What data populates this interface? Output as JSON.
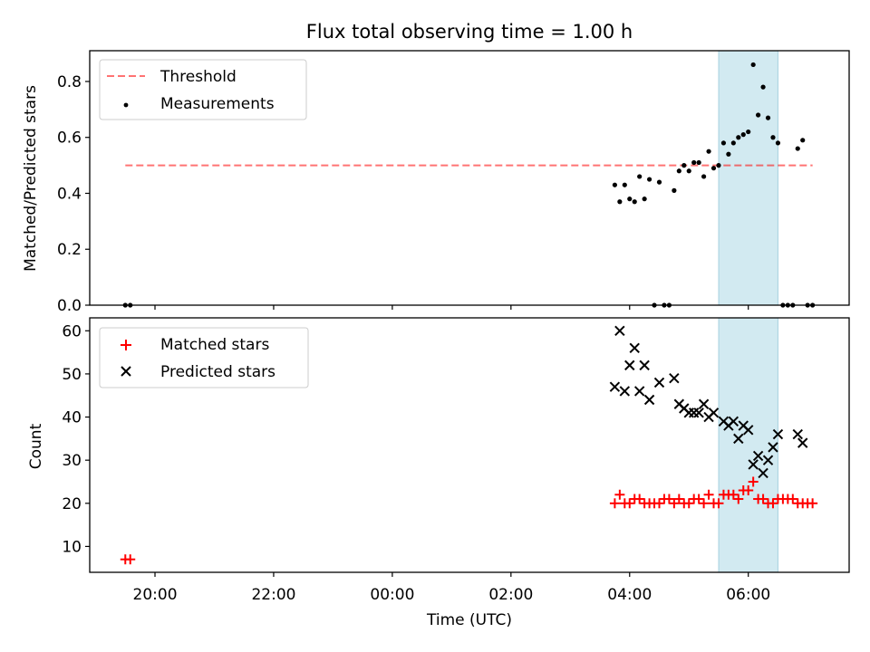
{
  "chart_data": [
    {
      "type": "scatter",
      "title": "Flux total observing time = 1.00 h",
      "xlabel": "",
      "ylabel": "Matched/Predicted stars",
      "ylim": [
        0,
        0.91
      ],
      "xlim_hours": [
        -5.1,
        7.7
      ],
      "x_tick_labels": [],
      "y_ticks": [
        0.0,
        0.2,
        0.4,
        0.6,
        0.8
      ],
      "y_tick_labels": [
        "0.0",
        "0.2",
        "0.4",
        "0.6",
        "0.8"
      ],
      "highlight_band": {
        "from": "05:30",
        "to": "06:30",
        "color": "#add8e6"
      },
      "legend": {
        "placement": "top-left"
      },
      "threshold": {
        "name": "Threshold",
        "value": 0.5,
        "from": "19:30",
        "to": "07:05",
        "color": "#ff0000",
        "style": "dashed"
      },
      "series": [
        {
          "name": "Measurements",
          "color": "#000000",
          "marker": "dot",
          "x": [
            "19:30",
            "19:35",
            "03:45",
            "03:50",
            "03:55",
            "04:00",
            "04:05",
            "04:10",
            "04:15",
            "04:20",
            "04:25",
            "04:30",
            "04:35",
            "04:40",
            "04:45",
            "04:50",
            "04:55",
            "05:00",
            "05:05",
            "05:10",
            "05:15",
            "05:20",
            "05:25",
            "05:30",
            "05:35",
            "05:40",
            "05:45",
            "05:50",
            "05:55",
            "06:00",
            "06:05",
            "06:10",
            "06:15",
            "06:20",
            "06:25",
            "06:30",
            "06:35",
            "06:40",
            "06:45",
            "06:50",
            "06:55",
            "07:00",
            "07:05"
          ],
          "y": [
            0.0,
            0.0,
            0.43,
            0.37,
            0.43,
            0.38,
            0.37,
            0.46,
            0.38,
            0.45,
            0.0,
            0.44,
            0.0,
            0.0,
            0.41,
            0.48,
            0.5,
            0.48,
            0.51,
            0.51,
            0.46,
            0.55,
            0.49,
            0.5,
            0.58,
            0.54,
            0.58,
            0.6,
            0.61,
            0.62,
            0.86,
            0.68,
            0.78,
            0.67,
            0.6,
            0.58,
            0.0,
            0.0,
            0.0,
            0.56,
            0.59,
            0.0,
            0.0
          ]
        }
      ]
    },
    {
      "type": "scatter",
      "title": "",
      "xlabel": "Time (UTC)",
      "ylabel": "Count",
      "ylim": [
        4,
        63
      ],
      "xlim_hours": [
        -5.1,
        7.7
      ],
      "x_ticks_hours": [
        -4,
        -2,
        0,
        2,
        4,
        6
      ],
      "x_tick_labels": [
        "20:00",
        "22:00",
        "00:00",
        "02:00",
        "04:00",
        "06:00"
      ],
      "y_ticks": [
        10,
        20,
        30,
        40,
        50,
        60
      ],
      "y_tick_labels": [
        "10",
        "20",
        "30",
        "40",
        "50",
        "60"
      ],
      "highlight_band": {
        "from": "05:30",
        "to": "06:30",
        "color": "#add8e6"
      },
      "legend": {
        "placement": "top-left"
      },
      "series": [
        {
          "name": "Matched stars",
          "color": "#ff0000",
          "marker": "plus",
          "x": [
            "19:30",
            "19:35",
            "03:45",
            "03:50",
            "03:55",
            "04:00",
            "04:05",
            "04:10",
            "04:15",
            "04:20",
            "04:25",
            "04:30",
            "04:35",
            "04:40",
            "04:45",
            "04:50",
            "04:55",
            "05:00",
            "05:05",
            "05:10",
            "05:15",
            "05:20",
            "05:25",
            "05:30",
            "05:35",
            "05:40",
            "05:45",
            "05:50",
            "05:55",
            "06:00",
            "06:05",
            "06:10",
            "06:15",
            "06:20",
            "06:25",
            "06:30",
            "06:35",
            "06:40",
            "06:45",
            "06:50",
            "06:55",
            "07:00",
            "07:05"
          ],
          "y": [
            7,
            7,
            20,
            22,
            20,
            20,
            21,
            21,
            20,
            20,
            20,
            20,
            21,
            21,
            20,
            21,
            20,
            20,
            21,
            21,
            20,
            22,
            20,
            20,
            22,
            22,
            22,
            21,
            23,
            23,
            25,
            21,
            21,
            20,
            20,
            21,
            21,
            21,
            21,
            20,
            20,
            20,
            20
          ]
        },
        {
          "name": "Predicted stars",
          "color": "#000000",
          "marker": "x",
          "x": [
            "03:45",
            "03:50",
            "03:55",
            "04:00",
            "04:05",
            "04:10",
            "04:15",
            "04:20",
            "04:30",
            "04:45",
            "04:50",
            "04:55",
            "05:00",
            "05:05",
            "05:10",
            "05:15",
            "05:20",
            "05:25",
            "05:35",
            "05:40",
            "05:45",
            "05:50",
            "05:55",
            "06:00",
            "06:05",
            "06:10",
            "06:15",
            "06:20",
            "06:25",
            "06:30",
            "06:50",
            "06:55"
          ],
          "y": [
            47,
            60,
            46,
            52,
            56,
            46,
            52,
            44,
            48,
            49,
            43,
            42,
            41,
            41,
            41,
            43,
            40,
            41,
            39,
            38,
            39,
            35,
            38,
            37,
            29,
            31,
            27,
            30,
            33,
            36,
            36,
            34
          ]
        }
      ]
    }
  ],
  "legend_labels": {
    "threshold": "Threshold",
    "measurements": "Measurements",
    "matched": "Matched stars",
    "predicted": "Predicted stars"
  }
}
